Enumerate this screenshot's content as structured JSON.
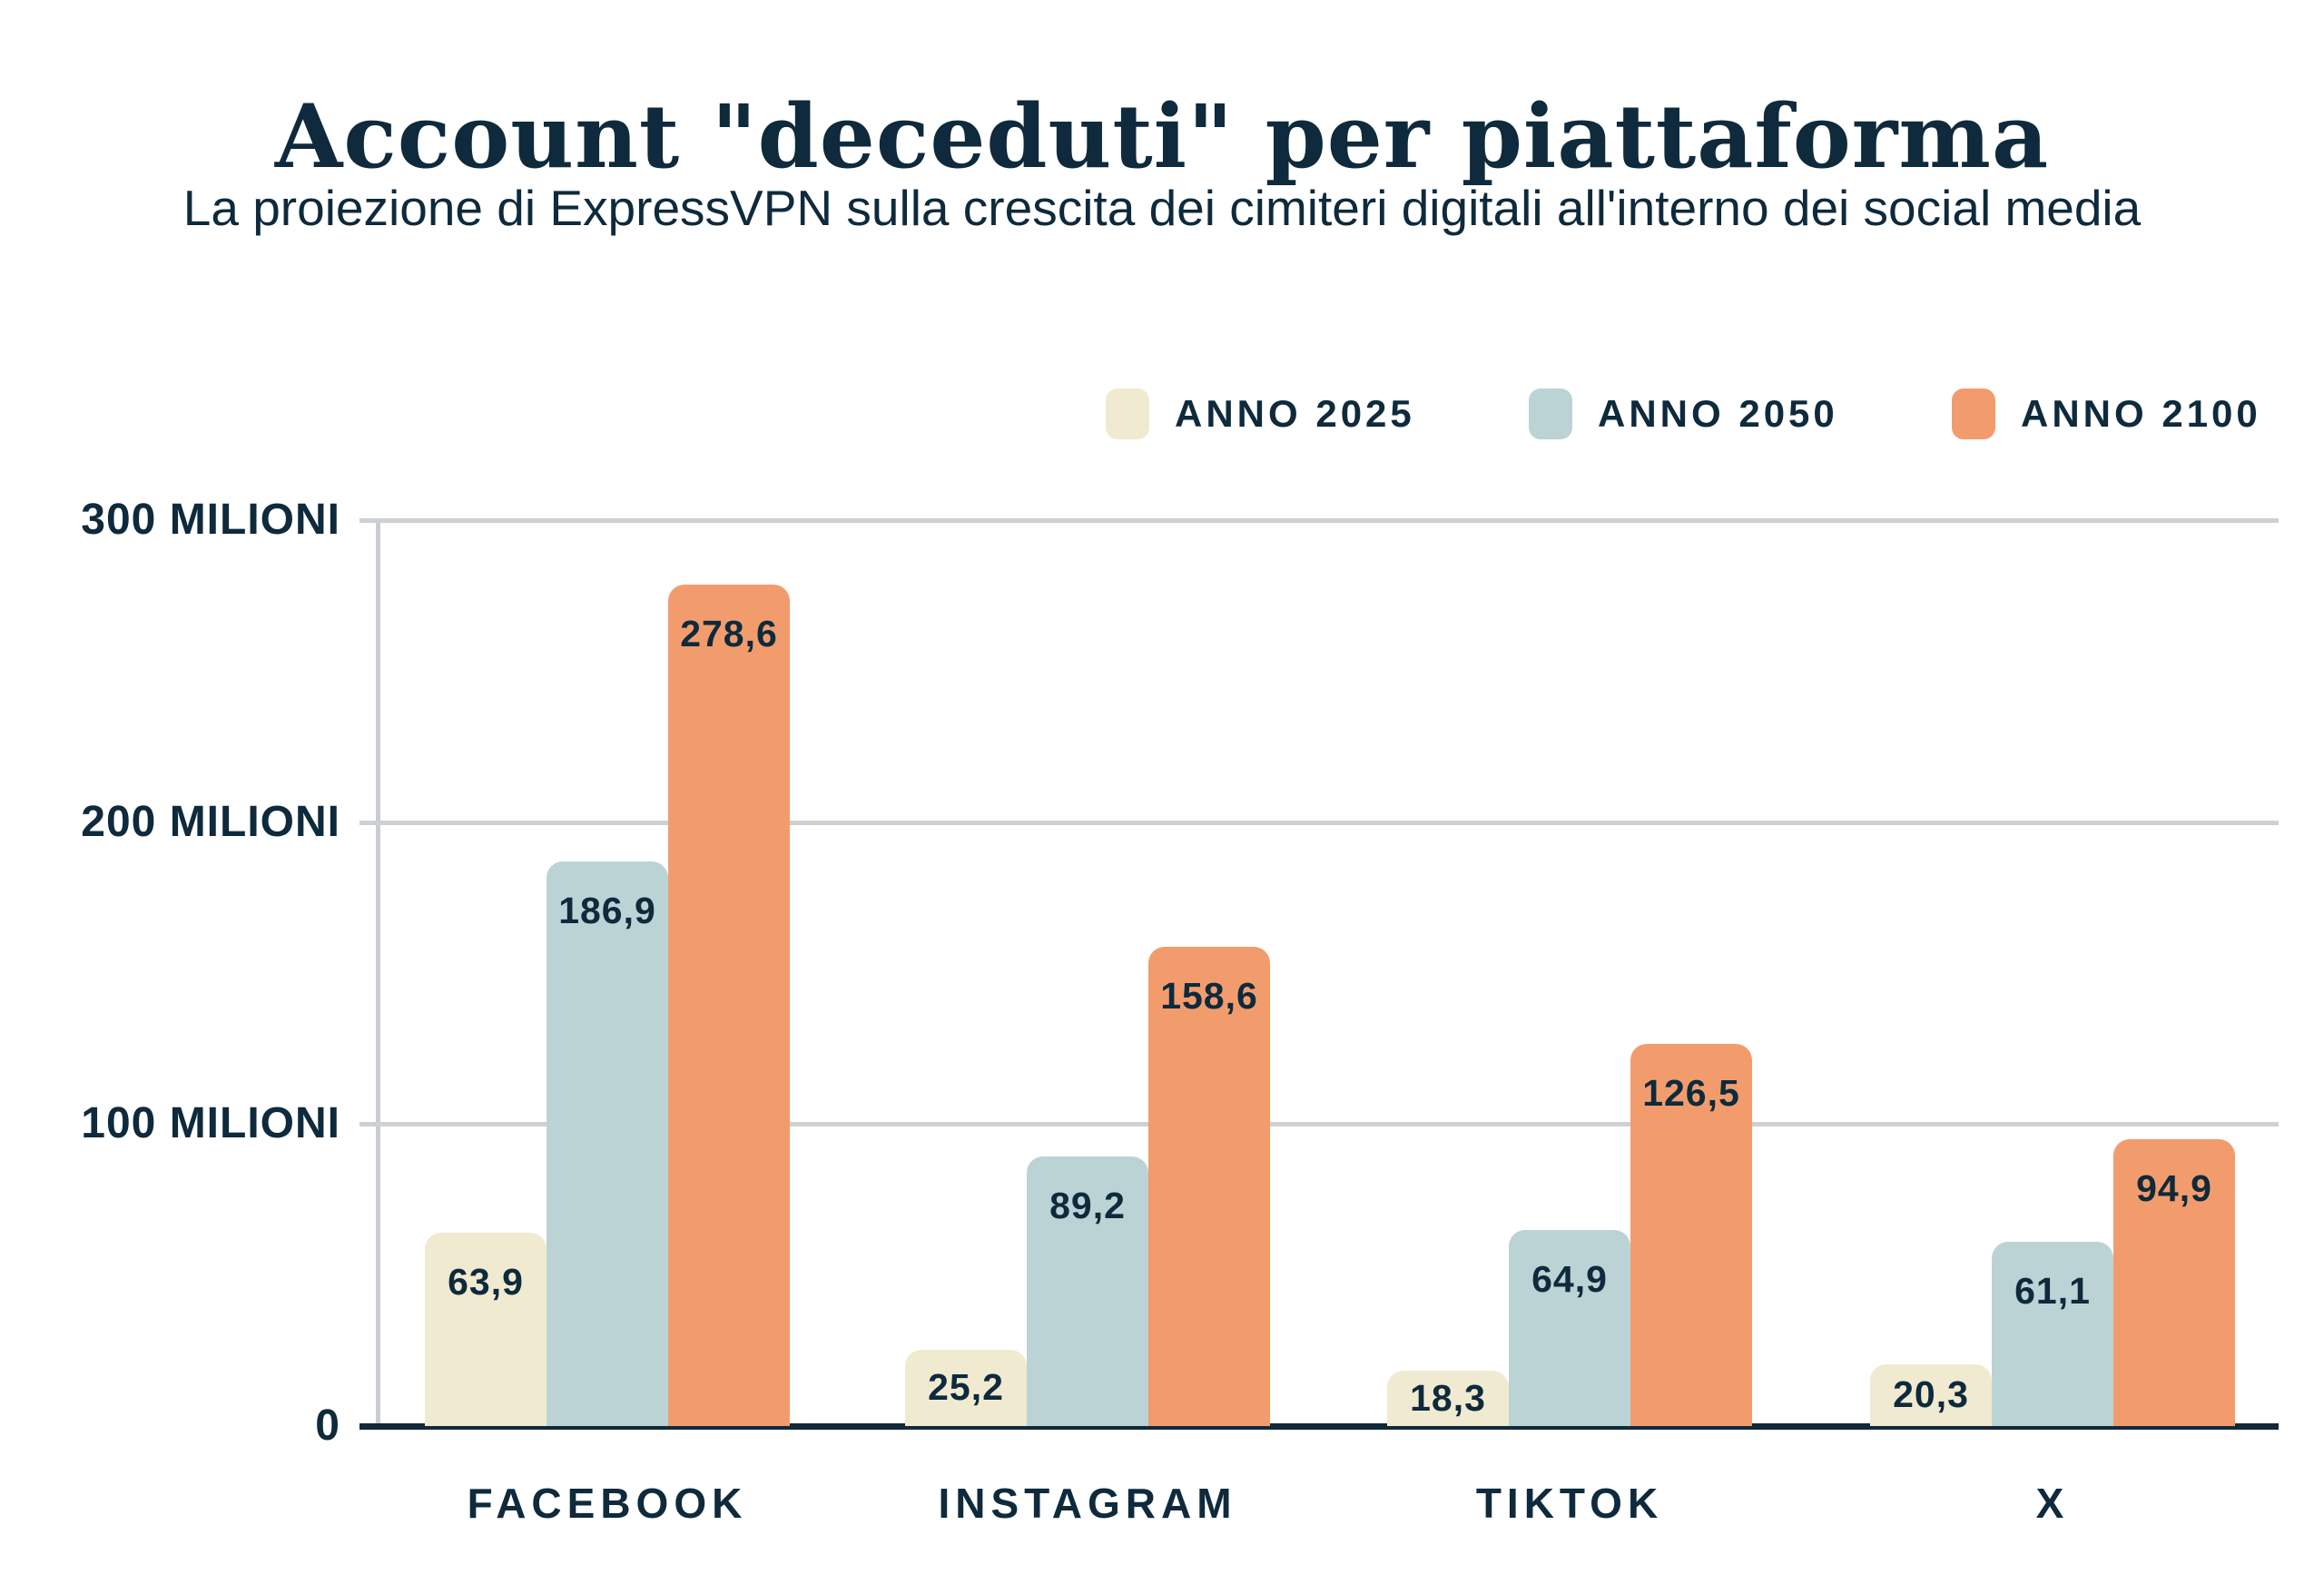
{
  "title": "Account \"deceduti\" per piattaforma",
  "subtitle": "La proiezione di ExpressVPN sulla crescita dei cimiteri digitali all'interno dei social media",
  "colors": {
    "navy_text": "#0E2A3C",
    "cream": "#F0EAD0",
    "light_blue": "#BCD3D5",
    "orange": "#F29C6D",
    "gridline_gray": "#CDD1D4",
    "axis_gray": "#C9CDD1",
    "baseline_navy": "#12293A",
    "background": "#FFFFFF"
  },
  "legend": {
    "items": [
      {
        "label": "ANNO 2025",
        "color": "#F0EAD0"
      },
      {
        "label": "ANNO 2050",
        "color": "#BCD3D5"
      },
      {
        "label": "ANNO 2100",
        "color": "#F29C6D"
      }
    ]
  },
  "y_axis": {
    "unit": "milioni",
    "ticks": [
      {
        "label": "300 MILIONI",
        "value": 300
      },
      {
        "label": "200 MILIONI",
        "value": 200
      },
      {
        "label": "100 MILIONI",
        "value": 100
      },
      {
        "label": "0",
        "value": 0
      }
    ]
  },
  "chart_data": {
    "type": "bar",
    "title": "Account \"deceduti\" per piattaforma",
    "subtitle": "La proiezione di ExpressVPN sulla crescita dei cimiteri digitali all'interno dei social media",
    "categories": [
      "FACEBOOK",
      "INSTAGRAM",
      "TIKTOK",
      "X"
    ],
    "series": [
      {
        "name": "ANNO 2025",
        "color": "#F0EAD0",
        "values": [
          63.9,
          25.2,
          18.3,
          20.3
        ],
        "labels": [
          "63,9",
          "25,2",
          "18,3",
          "20,3"
        ]
      },
      {
        "name": "ANNO 2050",
        "color": "#BCD3D5",
        "values": [
          186.9,
          89.2,
          64.9,
          61.1
        ],
        "labels": [
          "186,9",
          "89,2",
          "64,9",
          "61,1"
        ]
      },
      {
        "name": "ANNO 2100",
        "color": "#F29C6D",
        "values": [
          278.6,
          158.6,
          126.5,
          94.9
        ],
        "labels": [
          "278,6",
          "158,6",
          "126,5",
          "94,9"
        ]
      }
    ],
    "ylim": [
      0,
      300
    ],
    "grid": "horizontal",
    "legend_position": "top-right",
    "value_labels_position": "inside-top"
  }
}
